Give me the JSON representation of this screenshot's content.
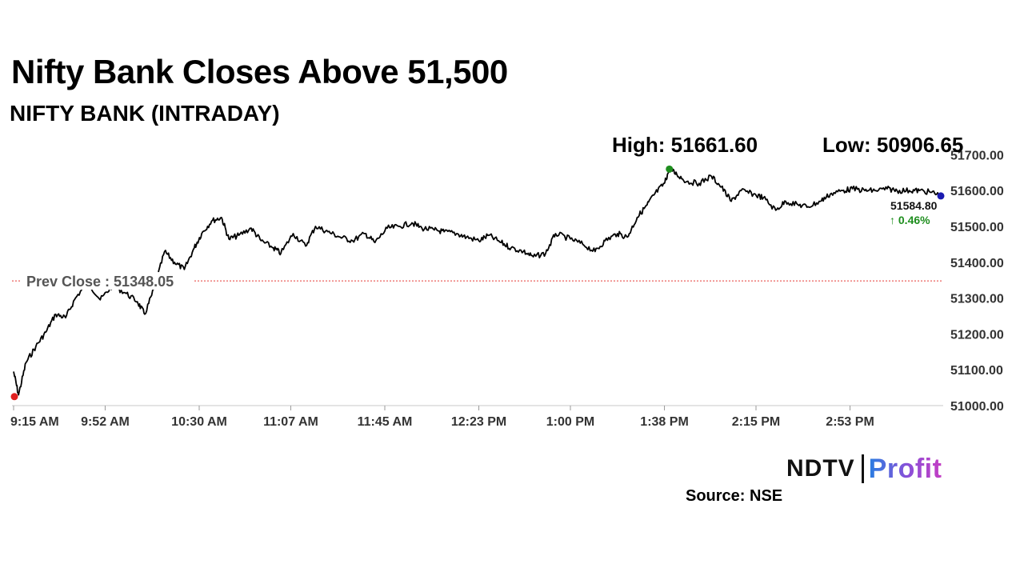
{
  "headline": "Nifty Bank Closes Above 51,500",
  "subtitle": "NIFTY BANK (INTRADAY)",
  "high_label": "High: 51661.60",
  "low_label": "Low: 50906.65",
  "prev_close_label": "Prev Close : 51348.05",
  "last_price_label": "51584.80",
  "change_label": "↑ 0.46%",
  "source": "Source: NSE",
  "logo": {
    "ndtv": "NDTV",
    "profit": "Profit"
  },
  "colors": {
    "line": "#000000",
    "prev_close": "#e53935",
    "high_marker": "#1e8e1e",
    "low_marker": "#e02020",
    "last_marker": "#1a1ab0",
    "change_up": "#1e8e1e"
  },
  "chart_data": {
    "type": "line",
    "title": "NIFTY BANK (INTRADAY)",
    "xlabel": "",
    "ylabel": "",
    "x_tick_labels": [
      "9:15 AM",
      "9:52 AM",
      "10:30 AM",
      "11:07 AM",
      "11:45 AM",
      "12:23 PM",
      "1:00 PM",
      "1:38 PM",
      "2:15 PM",
      "2:53 PM"
    ],
    "y_tick_labels": [
      "51000.00",
      "51100.00",
      "51200.00",
      "51300.00",
      "51400.00",
      "51500.00",
      "51600.00",
      "51700.00"
    ],
    "ylim": [
      51000,
      51700
    ],
    "prev_close": 51348.05,
    "high": 51661.6,
    "low": 50906.65,
    "last": 51584.8,
    "change_pct": 0.46,
    "grid": false,
    "series": [
      {
        "points": [
          [
            "9:15 AM",
            51095
          ],
          [
            "9:17 AM",
            51030
          ],
          [
            "9:20 AM",
            51120
          ],
          [
            "9:24 AM",
            51165
          ],
          [
            "9:28 AM",
            51205
          ],
          [
            "9:32 AM",
            51255
          ],
          [
            "9:36 AM",
            51245
          ],
          [
            "9:40 AM",
            51300
          ],
          [
            "9:45 AM",
            51345
          ],
          [
            "9:50 AM",
            51295
          ],
          [
            "9:55 AM",
            51335
          ],
          [
            "10:00 AM",
            51315
          ],
          [
            "10:05 AM",
            51290
          ],
          [
            "10:08 AM",
            51255
          ],
          [
            "10:12 AM",
            51330
          ],
          [
            "10:16 AM",
            51430
          ],
          [
            "10:20 AM",
            51400
          ],
          [
            "10:24 AM",
            51380
          ],
          [
            "10:28 AM",
            51440
          ],
          [
            "10:31 AM",
            51480
          ],
          [
            "10:35 AM",
            51515
          ],
          [
            "10:39 AM",
            51525
          ],
          [
            "10:42 AM",
            51465
          ],
          [
            "10:46 AM",
            51475
          ],
          [
            "10:51 AM",
            51495
          ],
          [
            "10:55 AM",
            51460
          ],
          [
            "11:00 AM",
            51440
          ],
          [
            "11:03 AM",
            51425
          ],
          [
            "11:08 AM",
            51480
          ],
          [
            "11:13 AM",
            51445
          ],
          [
            "11:17 AM",
            51500
          ],
          [
            "11:22 AM",
            51485
          ],
          [
            "11:27 AM",
            51470
          ],
          [
            "11:32 AM",
            51460
          ],
          [
            "11:37 AM",
            51480
          ],
          [
            "11:41 AM",
            51455
          ],
          [
            "11:46 AM",
            51495
          ],
          [
            "11:51 AM",
            51500
          ],
          [
            "11:56 AM",
            51510
          ],
          [
            "12:00 PM",
            51495
          ],
          [
            "12:05 PM",
            51490
          ],
          [
            "12:09 PM",
            51485
          ],
          [
            "12:14 PM",
            51480
          ],
          [
            "12:18 PM",
            51470
          ],
          [
            "12:23 PM",
            51460
          ],
          [
            "12:27 PM",
            51475
          ],
          [
            "12:32 PM",
            51455
          ],
          [
            "12:36 PM",
            51440
          ],
          [
            "12:41 PM",
            51430
          ],
          [
            "12:45 PM",
            51415
          ],
          [
            "12:50 PM",
            51425
          ],
          [
            "12:54 PM",
            51480
          ],
          [
            "1:00 PM",
            51465
          ],
          [
            "1:05 PM",
            51450
          ],
          [
            "1:10 PM",
            51430
          ],
          [
            "1:14 PM",
            51460
          ],
          [
            "1:19 PM",
            51480
          ],
          [
            "1:23 PM",
            51470
          ],
          [
            "1:27 PM",
            51525
          ],
          [
            "1:31 PM",
            51560
          ],
          [
            "1:34 PM",
            51590
          ],
          [
            "1:38 PM",
            51620
          ],
          [
            "1:40 PM",
            51660
          ],
          [
            "1:43 PM",
            51645
          ],
          [
            "1:47 PM",
            51625
          ],
          [
            "1:52 PM",
            51620
          ],
          [
            "1:57 PM",
            51640
          ],
          [
            "2:01 PM",
            51610
          ],
          [
            "2:05 PM",
            51570
          ],
          [
            "2:09 PM",
            51600
          ],
          [
            "2:14 PM",
            51590
          ],
          [
            "2:18 PM",
            51580
          ],
          [
            "2:23 PM",
            51545
          ],
          [
            "2:27 PM",
            51570
          ],
          [
            "2:32 PM",
            51560
          ],
          [
            "2:36 PM",
            51555
          ],
          [
            "2:41 PM",
            51570
          ],
          [
            "2:45 PM",
            51590
          ],
          [
            "2:50 PM",
            51600
          ],
          [
            "2:54 PM",
            51605
          ],
          [
            "2:59 PM",
            51600
          ],
          [
            "3:03 PM",
            51600
          ],
          [
            "3:08 PM",
            51605
          ],
          [
            "3:12 PM",
            51600
          ],
          [
            "3:17 PM",
            51600
          ],
          [
            "3:21 PM",
            51600
          ],
          [
            "3:26 PM",
            51595
          ],
          [
            "3:30 PM",
            51585
          ]
        ]
      }
    ]
  }
}
